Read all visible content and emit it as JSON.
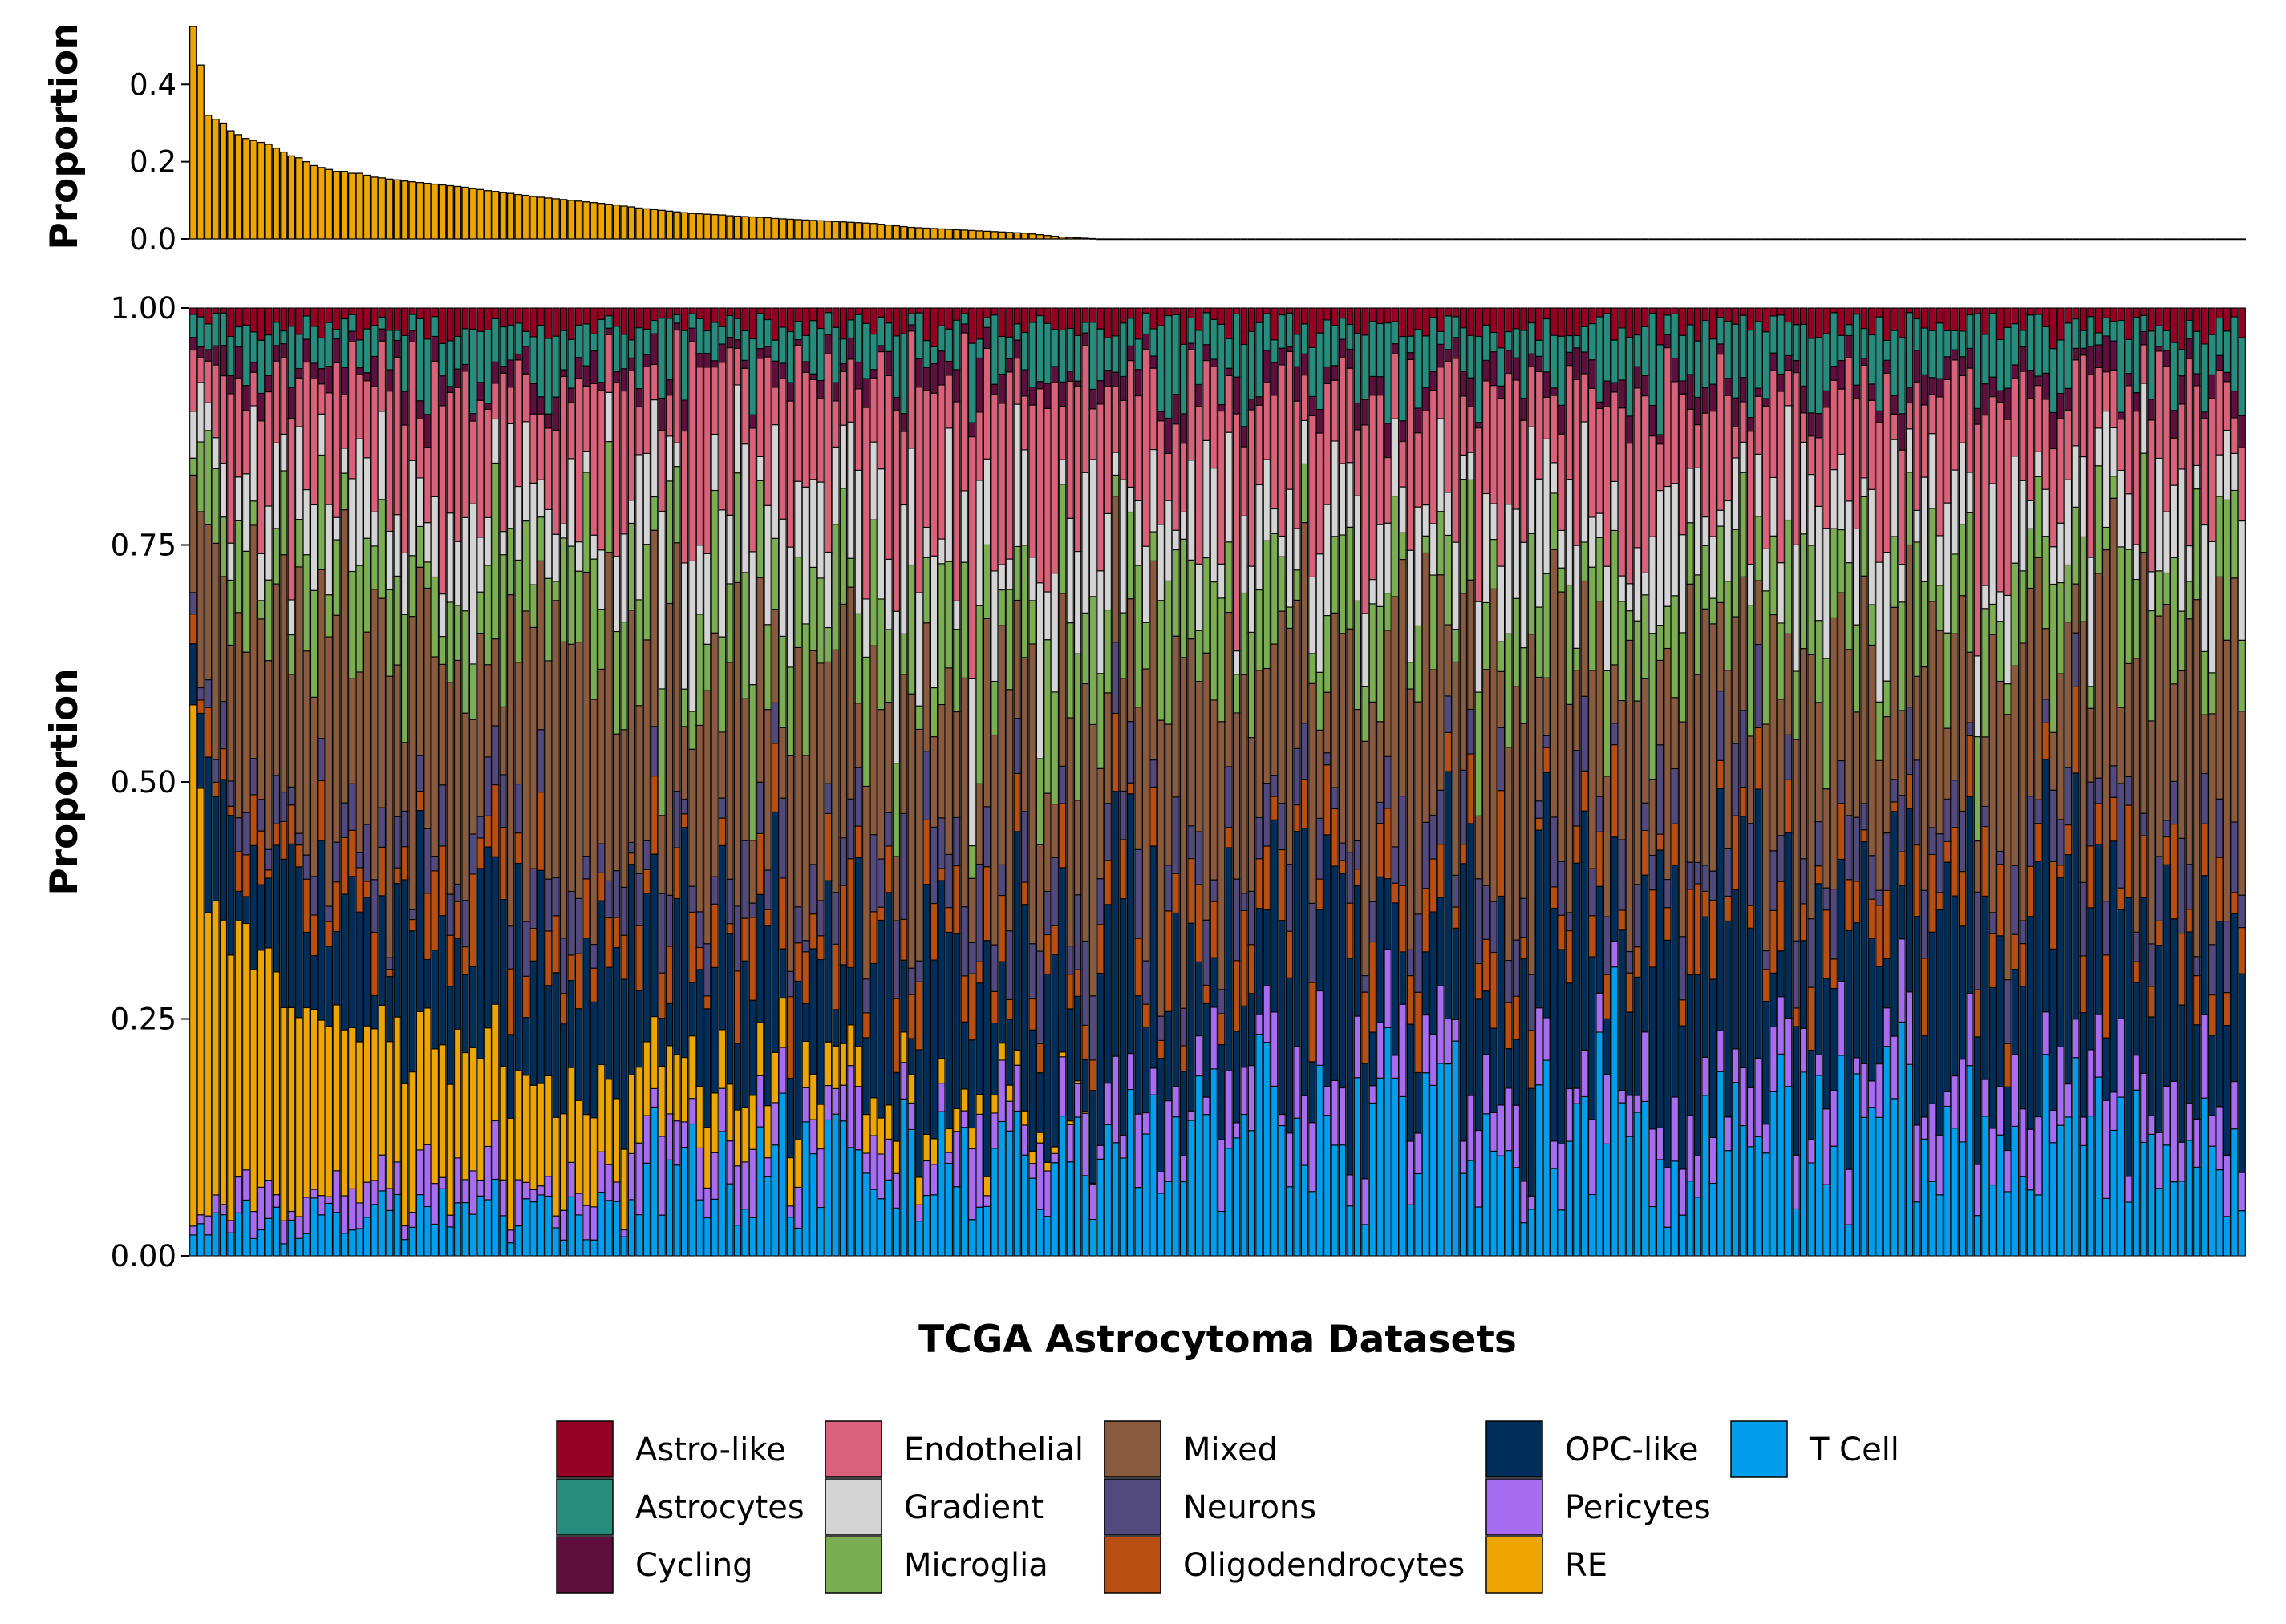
{
  "chart_data": [
    {
      "type": "bar",
      "panel": "top",
      "xlabel": "",
      "ylabel": "Proportion",
      "ylim": [
        0,
        0.55
      ],
      "yticks": [
        0.0,
        0.2,
        0.4
      ],
      "ytick_labels": [
        "0.0",
        "0.2",
        "0.4"
      ],
      "series": [
        {
          "name": "RE",
          "values": [
            0.55,
            0.45,
            0.32,
            0.31,
            0.3,
            0.28,
            0.27,
            0.26,
            0.255,
            0.25,
            0.245,
            0.235,
            0.225,
            0.215,
            0.21,
            0.2,
            0.19,
            0.185,
            0.18,
            0.175,
            0.175,
            0.17,
            0.17,
            0.165,
            0.16,
            0.158,
            0.155,
            0.153,
            0.15,
            0.148,
            0.146,
            0.144,
            0.142,
            0.14,
            0.138,
            0.136,
            0.134,
            0.13,
            0.128,
            0.125,
            0.123,
            0.12,
            0.118,
            0.115,
            0.113,
            0.11,
            0.108,
            0.106,
            0.104,
            0.102,
            0.1,
            0.098,
            0.096,
            0.094,
            0.092,
            0.09,
            0.088,
            0.085,
            0.083,
            0.08,
            0.078,
            0.076,
            0.074,
            0.072,
            0.07,
            0.068,
            0.066,
            0.065,
            0.064,
            0.063,
            0.062,
            0.06,
            0.059,
            0.058,
            0.057,
            0.056,
            0.055,
            0.053,
            0.052,
            0.051,
            0.05,
            0.049,
            0.048,
            0.047,
            0.046,
            0.045,
            0.044,
            0.043,
            0.042,
            0.041,
            0.04,
            0.038,
            0.036,
            0.034,
            0.032,
            0.03,
            0.029,
            0.028,
            0.027,
            0.026,
            0.025,
            0.024,
            0.023,
            0.022,
            0.021,
            0.02,
            0.019,
            0.018,
            0.017,
            0.016,
            0.015,
            0.013,
            0.011,
            0.009,
            0.007,
            0.005,
            0.004,
            0.003,
            0.002,
            0.001
          ]
        }
      ],
      "n_total_datasets": 272
    },
    {
      "type": "bar",
      "stacked": true,
      "panel": "main",
      "xlabel": "TCGA Astrocytoma Datasets",
      "ylabel": "Proportion",
      "ylim": [
        0,
        1
      ],
      "yticks": [
        0.0,
        0.25,
        0.5,
        0.75,
        1.0
      ],
      "ytick_labels": [
        "0.00",
        "0.25",
        "0.50",
        "0.75",
        "1.00"
      ],
      "n_categories": 272,
      "stack_order": [
        "T Cell",
        "Pericytes",
        "RE",
        "OPC-like",
        "Oligodendrocytes",
        "Neurons",
        "Mixed",
        "Microglia",
        "Gradient",
        "Endothelial",
        "Cycling",
        "Astrocytes",
        "Astro-like"
      ],
      "sample_compositions_approx": [
        {
          "x_range": "1-60",
          "T Cell": 0.04,
          "Pericytes": 0.03,
          "RE": 0.17,
          "OPC-like": 0.12,
          "Oligodendrocytes": 0.04,
          "Neurons": 0.04,
          "Mixed": 0.22,
          "Microglia": 0.08,
          "Gradient": 0.07,
          "Endothelial": 0.11,
          "Cycling": 0.02,
          "Astrocytes": 0.04,
          "Astro-like": 0.02
        },
        {
          "x_range": "61-120",
          "T Cell": 0.1,
          "Pericytes": 0.04,
          "RE": 0.02,
          "OPC-like": 0.15,
          "Oligodendrocytes": 0.05,
          "Neurons": 0.05,
          "Mixed": 0.19,
          "Microglia": 0.09,
          "Gradient": 0.1,
          "Endothelial": 0.13,
          "Cycling": 0.02,
          "Astrocytes": 0.04,
          "Astro-like": 0.02
        },
        {
          "x_range": "121-272",
          "T Cell": 0.13,
          "Pericytes": 0.05,
          "RE": 0.0,
          "OPC-like": 0.17,
          "Oligodendrocytes": 0.05,
          "Neurons": 0.05,
          "Mixed": 0.18,
          "Microglia": 0.08,
          "Gradient": 0.08,
          "Endothelial": 0.12,
          "Cycling": 0.02,
          "Astrocytes": 0.05,
          "Astro-like": 0.02
        }
      ]
    }
  ],
  "legend": {
    "placement": "bottom",
    "entries": [
      {
        "label": "Astro-like",
        "color": "#960023"
      },
      {
        "label": "Astrocytes",
        "color": "#268C7D"
      },
      {
        "label": "Cycling",
        "color": "#5E0F3E"
      },
      {
        "label": "Endothelial",
        "color": "#D9627A"
      },
      {
        "label": "Gradient",
        "color": "#D4D4D4"
      },
      {
        "label": "Microglia",
        "color": "#7BAE52"
      },
      {
        "label": "Mixed",
        "color": "#8A5A3E"
      },
      {
        "label": "Neurons",
        "color": "#524A7E"
      },
      {
        "label": "Oligodendrocytes",
        "color": "#B84E12"
      },
      {
        "label": "OPC-like",
        "color": "#002E5A"
      },
      {
        "label": "Pericytes",
        "color": "#A66DF2"
      },
      {
        "label": "RE",
        "color": "#EDA500"
      },
      {
        "label": "T Cell",
        "color": "#009EED"
      }
    ]
  }
}
